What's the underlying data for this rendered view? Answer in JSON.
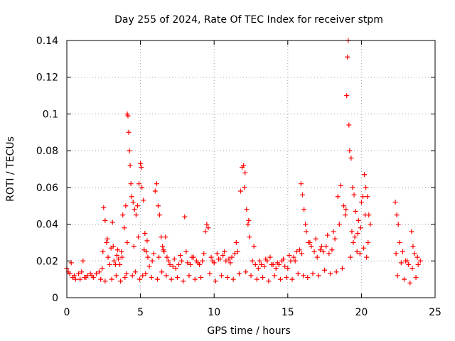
{
  "chart_data": {
    "type": "scatter",
    "title": "Day 255 of 2024, Rate Of TEC Index for receiver stpm",
    "xlabel": "GPS time / hours",
    "ylabel": "ROTI / TECUs",
    "xlim": [
      0,
      25
    ],
    "ylim": [
      0,
      0.14
    ],
    "xticks": [
      0,
      5,
      10,
      15,
      20,
      25
    ],
    "xtick_labels": [
      "0",
      "5",
      "10",
      "15",
      "20",
      "25"
    ],
    "yticks": [
      0,
      0.02,
      0.04,
      0.06,
      0.08,
      0.1,
      0.12,
      0.14
    ],
    "ytick_labels": [
      "0",
      "0.02",
      "0.04",
      "0.06",
      "0.08",
      "0.1",
      "0.12",
      "0.14"
    ],
    "grid": true,
    "marker": "+",
    "color": "#ff0000",
    "series": [
      {
        "name": "ROTI",
        "x": [
          0.0,
          0.2,
          0.4,
          0.6,
          0.8,
          1.0,
          1.2,
          1.4,
          1.6,
          1.8,
          2.0,
          2.2,
          2.4,
          2.5,
          2.6,
          2.7,
          2.8,
          2.9,
          3.0,
          3.1,
          3.2,
          3.3,
          3.4,
          3.5,
          3.6,
          3.7,
          3.8,
          3.9,
          4.0,
          4.1,
          4.15,
          4.2,
          4.25,
          4.3,
          4.35,
          4.4,
          4.5,
          4.6,
          4.7,
          4.8,
          4.9,
          5.0,
          5.05,
          5.1,
          5.2,
          5.3,
          5.4,
          5.5,
          5.6,
          5.8,
          6.0,
          6.1,
          6.2,
          6.3,
          6.4,
          6.5,
          6.6,
          6.7,
          6.8,
          7.0,
          7.2,
          7.4,
          7.6,
          7.8,
          8.0,
          8.1,
          8.2,
          8.4,
          8.6,
          8.8,
          9.0,
          9.2,
          9.4,
          9.5,
          9.6,
          9.8,
          10.0,
          10.2,
          10.4,
          10.6,
          10.8,
          11.0,
          11.2,
          11.4,
          11.6,
          11.8,
          11.9,
          12.0,
          12.1,
          12.2,
          12.3,
          12.4,
          12.6,
          12.8,
          13.0,
          13.2,
          13.4,
          13.6,
          13.8,
          14.0,
          14.2,
          14.4,
          14.6,
          14.8,
          15.0,
          15.2,
          15.4,
          15.6,
          15.8,
          15.9,
          16.0,
          16.1,
          16.2,
          16.4,
          16.6,
          16.8,
          17.0,
          17.2,
          17.4,
          17.6,
          17.8,
          18.0,
          18.2,
          18.4,
          18.6,
          18.8,
          18.9,
          19.0,
          19.05,
          19.1,
          19.15,
          19.2,
          19.3,
          19.4,
          19.5,
          19.6,
          19.8,
          20.0,
          20.1,
          20.2,
          20.3,
          20.4,
          20.5,
          20.6,
          22.3,
          22.4,
          22.5,
          22.6,
          22.8,
          23.0,
          23.2,
          23.4,
          23.5,
          23.6,
          23.8,
          24.0,
          0.1,
          0.5,
          0.9,
          1.3,
          1.7,
          2.3,
          2.6,
          3.05,
          3.35,
          3.65,
          3.95,
          4.05,
          4.45,
          4.65,
          4.95,
          5.15,
          5.35,
          5.75,
          6.15,
          6.45,
          6.75,
          7.1,
          7.5,
          7.9,
          8.3,
          8.7,
          9.1,
          9.7,
          10.1,
          10.5,
          10.9,
          11.3,
          11.7,
          12.15,
          12.5,
          12.9,
          13.3,
          13.7,
          14.1,
          14.5,
          14.9,
          15.3,
          15.7,
          16.05,
          16.35,
          16.7,
          17.1,
          17.5,
          17.9,
          18.3,
          18.7,
          19.25,
          19.45,
          19.7,
          19.9,
          20.15,
          20.35,
          22.45,
          22.9,
          23.3,
          23.7,
          0.3,
          1.1,
          2.45,
          2.75,
          3.15,
          3.45,
          3.75,
          4.1,
          4.55,
          4.85,
          5.25,
          5.45,
          5.9,
          6.25,
          6.55,
          6.9,
          7.3,
          7.7,
          8.5,
          8.9,
          9.3,
          9.9,
          10.3,
          10.7,
          11.1,
          11.5,
          12.05,
          12.35,
          12.7,
          13.1,
          13.5,
          13.9,
          14.3,
          14.7,
          15.1,
          15.5,
          15.95,
          16.25,
          16.5,
          16.9,
          17.3,
          17.7,
          18.1,
          18.5,
          18.95,
          19.35,
          19.55,
          19.75,
          19.95,
          20.25,
          20.45,
          22.35,
          22.7,
          23.1,
          23.45,
          23.85
        ],
        "y": [
          0.016,
          0.013,
          0.011,
          0.01,
          0.013,
          0.014,
          0.011,
          0.012,
          0.013,
          0.011,
          0.013,
          0.014,
          0.016,
          0.049,
          0.042,
          0.03,
          0.022,
          0.018,
          0.027,
          0.041,
          0.02,
          0.018,
          0.023,
          0.021,
          0.018,
          0.025,
          0.045,
          0.038,
          0.05,
          0.1,
          0.099,
          0.09,
          0.08,
          0.072,
          0.062,
          0.055,
          0.052,
          0.048,
          0.045,
          0.05,
          0.062,
          0.073,
          0.071,
          0.06,
          0.053,
          0.035,
          0.025,
          0.022,
          0.017,
          0.02,
          0.058,
          0.062,
          0.05,
          0.045,
          0.033,
          0.028,
          0.025,
          0.033,
          0.022,
          0.018,
          0.017,
          0.016,
          0.018,
          0.02,
          0.044,
          0.025,
          0.019,
          0.018,
          0.022,
          0.02,
          0.018,
          0.02,
          0.036,
          0.04,
          0.038,
          0.022,
          0.019,
          0.024,
          0.021,
          0.023,
          0.02,
          0.021,
          0.022,
          0.024,
          0.025,
          0.058,
          0.071,
          0.072,
          0.068,
          0.048,
          0.04,
          0.033,
          0.02,
          0.018,
          0.016,
          0.018,
          0.017,
          0.02,
          0.022,
          0.018,
          0.016,
          0.018,
          0.02,
          0.017,
          0.016,
          0.02,
          0.022,
          0.025,
          0.026,
          0.062,
          0.056,
          0.048,
          0.04,
          0.03,
          0.028,
          0.025,
          0.022,
          0.026,
          0.025,
          0.028,
          0.024,
          0.026,
          0.032,
          0.055,
          0.061,
          0.05,
          0.045,
          0.11,
          0.131,
          0.14,
          0.094,
          0.08,
          0.076,
          0.06,
          0.056,
          0.047,
          0.042,
          0.052,
          0.055,
          0.067,
          0.06,
          0.055,
          0.045,
          0.04,
          0.052,
          0.045,
          0.04,
          0.03,
          0.025,
          0.02,
          0.018,
          0.036,
          0.028,
          0.024,
          0.022,
          0.02,
          0.014,
          0.012,
          0.01,
          0.011,
          0.012,
          0.01,
          0.009,
          0.01,
          0.012,
          0.009,
          0.011,
          0.013,
          0.012,
          0.014,
          0.01,
          0.012,
          0.013,
          0.011,
          0.01,
          0.014,
          0.012,
          0.01,
          0.011,
          0.009,
          0.012,
          0.01,
          0.011,
          0.013,
          0.009,
          0.012,
          0.011,
          0.01,
          0.013,
          0.014,
          0.012,
          0.01,
          0.011,
          0.009,
          0.012,
          0.01,
          0.011,
          0.01,
          0.013,
          0.012,
          0.011,
          0.013,
          0.012,
          0.015,
          0.013,
          0.014,
          0.016,
          0.022,
          0.03,
          0.025,
          0.024,
          0.027,
          0.022,
          0.012,
          0.01,
          0.008,
          0.011,
          0.019,
          0.02,
          0.025,
          0.032,
          0.028,
          0.026,
          0.022,
          0.03,
          0.028,
          0.033,
          0.026,
          0.031,
          0.024,
          0.022,
          0.026,
          0.02,
          0.021,
          0.023,
          0.022,
          0.019,
          0.024,
          0.02,
          0.021,
          0.025,
          0.019,
          0.03,
          0.06,
          0.042,
          0.028,
          0.02,
          0.021,
          0.018,
          0.019,
          0.021,
          0.023,
          0.02,
          0.024,
          0.036,
          0.03,
          0.032,
          0.028,
          0.034,
          0.036,
          0.04,
          0.048,
          0.036,
          0.033,
          0.035,
          0.038,
          0.045,
          0.03,
          0.024,
          0.019,
          0.02,
          0.016,
          0.018
        ]
      }
    ]
  }
}
